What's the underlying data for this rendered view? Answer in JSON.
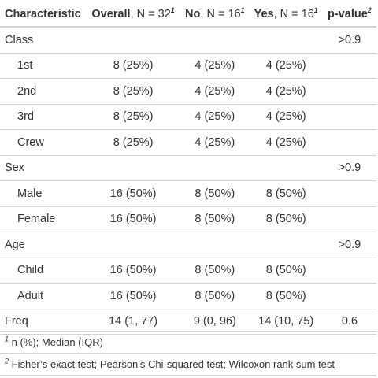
{
  "header": {
    "characteristic": "Characteristic",
    "overall_label": "Overall",
    "overall_n": ", N = 32",
    "no_label": "No",
    "no_n": ", N = 16",
    "yes_label": "Yes",
    "yes_n": ", N = 16",
    "pvalue_label": "p-value",
    "sup1": "1",
    "sup2": "2"
  },
  "rows": [
    {
      "label": "Class",
      "overall": "",
      "no": "",
      "yes": "",
      "p": ">0.9"
    },
    {
      "label": "1st",
      "overall": "8 (25%)",
      "no": "4 (25%)",
      "yes": "4 (25%)",
      "p": ""
    },
    {
      "label": "2nd",
      "overall": "8 (25%)",
      "no": "4 (25%)",
      "yes": "4 (25%)",
      "p": ""
    },
    {
      "label": "3rd",
      "overall": "8 (25%)",
      "no": "4 (25%)",
      "yes": "4 (25%)",
      "p": ""
    },
    {
      "label": "Crew",
      "overall": "8 (25%)",
      "no": "4 (25%)",
      "yes": "4 (25%)",
      "p": ""
    },
    {
      "label": "Sex",
      "overall": "",
      "no": "",
      "yes": "",
      "p": ">0.9"
    },
    {
      "label": "Male",
      "overall": "16 (50%)",
      "no": "8 (50%)",
      "yes": "8 (50%)",
      "p": ""
    },
    {
      "label": "Female",
      "overall": "16 (50%)",
      "no": "8 (50%)",
      "yes": "8 (50%)",
      "p": ""
    },
    {
      "label": "Age",
      "overall": "",
      "no": "",
      "yes": "",
      "p": ">0.9"
    },
    {
      "label": "Child",
      "overall": "16 (50%)",
      "no": "8 (50%)",
      "yes": "8 (50%)",
      "p": ""
    },
    {
      "label": "Adult",
      "overall": "16 (50%)",
      "no": "8 (50%)",
      "yes": "8 (50%)",
      "p": ""
    },
    {
      "label": "Freq",
      "overall": "14 (1, 77)",
      "no": "9 (0, 96)",
      "yes": "14 (10, 75)",
      "p": "0.6"
    }
  ],
  "footnotes": [
    {
      "mark": "1",
      "text": " n (%); Median (IQR)"
    },
    {
      "mark": "2",
      "text": " Fisher’s exact test; Pearson’s Chi-squared test; Wilcoxon rank sum test"
    }
  ]
}
